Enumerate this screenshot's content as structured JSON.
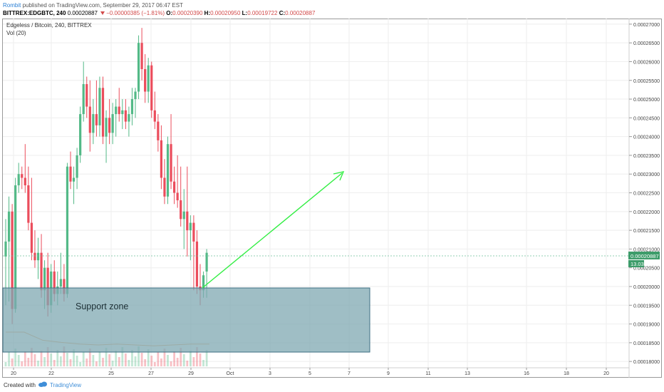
{
  "header": {
    "author": "Rombit",
    "published": "published on TradingView.com, September 29, 2017 06:47 EST",
    "symbol": "BITTREX:EDGBTC, 240",
    "last": "0.00020887",
    "change": "−0.00000385 (−1.81%)",
    "o_label": "O:",
    "o": "0.00020390",
    "h_label": "H:",
    "h": "0.00020950",
    "l_label": "L:",
    "l": "0.00019722",
    "c_label": "C:",
    "c": "0.00020887"
  },
  "legend": {
    "title": "Edgeless / Bitcoin, 240, BITTREX",
    "volume": "Vol (20)"
  },
  "annotation": {
    "support_text": "Support zone"
  },
  "price_tag": {
    "price": "0.00020887",
    "volume": "13.03"
  },
  "footer": {
    "created": "Created with",
    "brand": "TradingView"
  },
  "colors": {
    "up": "#53b987",
    "down": "#eb4d5c",
    "grid": "#eeeeee",
    "zone_fill": "#7fa8b2",
    "arrow": "#33ee44",
    "tag": "#3d9c6a"
  },
  "chart_data": {
    "type": "candlestick",
    "title": "Edgeless / Bitcoin, 240, BITTREX",
    "y_ticks": [
      "0.00018000",
      "0.00018500",
      "0.00019000",
      "0.00019500",
      "0.00020000",
      "0.00020500",
      "0.00021000",
      "0.00021500",
      "0.00022000",
      "0.00022500",
      "0.00023000",
      "0.00023500",
      "0.00024000",
      "0.00024500",
      "0.00025000",
      "0.00025500",
      "0.00026000",
      "0.00026500",
      "0.00027000"
    ],
    "y_range": [
      0.0001787,
      0.0002715
    ],
    "x_ticks": [
      "20",
      "22",
      "25",
      "27",
      "29",
      "Oct",
      "3",
      "5",
      "7",
      "9",
      "11",
      "13",
      "16",
      "18",
      "20"
    ],
    "candles": [
      {
        "o": 0.000208,
        "h": 0.000218,
        "l": 0.000195,
        "c": 0.000212
      },
      {
        "o": 0.000212,
        "h": 0.000224,
        "l": 0.000196,
        "c": 0.00022
      },
      {
        "o": 0.00022,
        "h": 0.000222,
        "l": 0.00019,
        "c": 0.000194
      },
      {
        "o": 0.000194,
        "h": 0.000229,
        "l": 0.000193,
        "c": 0.000227
      },
      {
        "o": 0.000227,
        "h": 0.000233,
        "l": 0.000225,
        "c": 0.00023
      },
      {
        "o": 0.00023,
        "h": 0.000232,
        "l": 0.000226,
        "c": 0.000229
      },
      {
        "o": 0.000229,
        "h": 0.000238,
        "l": 0.000225,
        "c": 0.000227
      },
      {
        "o": 0.000227,
        "h": 0.000232,
        "l": 0.000215,
        "c": 0.000217
      },
      {
        "o": 0.000217,
        "h": 0.000229,
        "l": 0.000207,
        "c": 0.000209
      },
      {
        "o": 0.000209,
        "h": 0.000215,
        "l": 0.000205,
        "c": 0.000207
      },
      {
        "o": 0.000207,
        "h": 0.000213,
        "l": 0.000202,
        "c": 0.000209
      },
      {
        "o": 0.000209,
        "h": 0.000214,
        "l": 0.000197,
        "c": 0.000199
      },
      {
        "o": 0.000199,
        "h": 0.000207,
        "l": 0.000194,
        "c": 0.000205
      },
      {
        "o": 0.000205,
        "h": 0.000209,
        "l": 0.000192,
        "c": 0.000195
      },
      {
        "o": 0.000195,
        "h": 0.000206,
        "l": 0.000193,
        "c": 0.000204
      },
      {
        "o": 0.000204,
        "h": 0.000207,
        "l": 0.000196,
        "c": 0.000198
      },
      {
        "o": 0.000198,
        "h": 0.000204,
        "l": 0.000195,
        "c": 0.0002
      },
      {
        "o": 0.0002,
        "h": 0.000209,
        "l": 0.000198,
        "c": 0.000202
      },
      {
        "o": 0.000202,
        "h": 0.000206,
        "l": 0.000196,
        "c": 0.000198
      },
      {
        "o": 0.000198,
        "h": 0.000233,
        "l": 0.000197,
        "c": 0.000232
      },
      {
        "o": 0.000232,
        "h": 0.000236,
        "l": 0.000226,
        "c": 0.000228
      },
      {
        "o": 0.000228,
        "h": 0.000232,
        "l": 0.000222,
        "c": 0.000229
      },
      {
        "o": 0.000229,
        "h": 0.000237,
        "l": 0.000226,
        "c": 0.000235
      },
      {
        "o": 0.000235,
        "h": 0.000248,
        "l": 0.000233,
        "c": 0.000246
      },
      {
        "o": 0.000246,
        "h": 0.00026,
        "l": 0.000244,
        "c": 0.000254
      },
      {
        "o": 0.000254,
        "h": 0.000256,
        "l": 0.000245,
        "c": 0.000248
      },
      {
        "o": 0.000248,
        "h": 0.000255,
        "l": 0.000236,
        "c": 0.000241
      },
      {
        "o": 0.000241,
        "h": 0.00025,
        "l": 0.000238,
        "c": 0.000246
      },
      {
        "o": 0.000246,
        "h": 0.000255,
        "l": 0.00024,
        "c": 0.000243
      },
      {
        "o": 0.000243,
        "h": 0.000256,
        "l": 0.00024,
        "c": 0.000253
      },
      {
        "o": 0.000253,
        "h": 0.000256,
        "l": 0.000238,
        "c": 0.00024
      },
      {
        "o": 0.00024,
        "h": 0.000247,
        "l": 0.000233,
        "c": 0.000245
      },
      {
        "o": 0.000245,
        "h": 0.00025,
        "l": 0.000238,
        "c": 0.000241
      },
      {
        "o": 0.000241,
        "h": 0.000249,
        "l": 0.000238,
        "c": 0.000246
      },
      {
        "o": 0.000246,
        "h": 0.00025,
        "l": 0.00024,
        "c": 0.000248
      },
      {
        "o": 0.000248,
        "h": 0.000253,
        "l": 0.000244,
        "c": 0.000246
      },
      {
        "o": 0.000246,
        "h": 0.00025,
        "l": 0.000242,
        "c": 0.000247
      },
      {
        "o": 0.000247,
        "h": 0.00025,
        "l": 0.000242,
        "c": 0.000244
      },
      {
        "o": 0.000244,
        "h": 0.000248,
        "l": 0.00024,
        "c": 0.000246
      },
      {
        "o": 0.000246,
        "h": 0.000253,
        "l": 0.000243,
        "c": 0.00025
      },
      {
        "o": 0.00025,
        "h": 0.000253,
        "l": 0.000245,
        "c": 0.000252
      },
      {
        "o": 0.000252,
        "h": 0.000267,
        "l": 0.00025,
        "c": 0.000265
      },
      {
        "o": 0.000265,
        "h": 0.000269,
        "l": 0.000255,
        "c": 0.000258
      },
      {
        "o": 0.000258,
        "h": 0.000262,
        "l": 0.000249,
        "c": 0.000252
      },
      {
        "o": 0.000252,
        "h": 0.000261,
        "l": 0.000249,
        "c": 0.000259
      },
      {
        "o": 0.000259,
        "h": 0.00026,
        "l": 0.000245,
        "c": 0.000247
      },
      {
        "o": 0.000247,
        "h": 0.000252,
        "l": 0.000242,
        "c": 0.000244
      },
      {
        "o": 0.000244,
        "h": 0.000246,
        "l": 0.000236,
        "c": 0.000239
      },
      {
        "o": 0.000239,
        "h": 0.000243,
        "l": 0.000226,
        "c": 0.000229
      },
      {
        "o": 0.000229,
        "h": 0.000234,
        "l": 0.000222,
        "c": 0.000224
      },
      {
        "o": 0.000224,
        "h": 0.00024,
        "l": 0.000222,
        "c": 0.000238
      },
      {
        "o": 0.000238,
        "h": 0.000246,
        "l": 0.000226,
        "c": 0.000228
      },
      {
        "o": 0.000228,
        "h": 0.000232,
        "l": 0.000222,
        "c": 0.000225
      },
      {
        "o": 0.000225,
        "h": 0.000235,
        "l": 0.000221,
        "c": 0.000223
      },
      {
        "o": 0.000223,
        "h": 0.000232,
        "l": 0.000216,
        "c": 0.000218
      },
      {
        "o": 0.000218,
        "h": 0.000226,
        "l": 0.00021,
        "c": 0.00022
      },
      {
        "o": 0.00022,
        "h": 0.000232,
        "l": 0.000208,
        "c": 0.000215
      },
      {
        "o": 0.000215,
        "h": 0.000219,
        "l": 0.000207,
        "c": 0.000217
      },
      {
        "o": 0.000217,
        "h": 0.000219,
        "l": 0.000199,
        "c": 0.000212
      },
      {
        "o": 0.000212,
        "h": 0.000215,
        "l": 0.000198,
        "c": 0.0002
      },
      {
        "o": 0.0002,
        "h": 0.000206,
        "l": 0.000195,
        "c": 0.000199
      },
      {
        "o": 0.000199,
        "h": 0.000204,
        "l": 0.000197,
        "c": 0.000203
      },
      {
        "o": 0.000204,
        "h": 0.00021,
        "l": 0.000197,
        "c": 0.000209
      }
    ],
    "volume_ma": [
      0.00019,
      0.00019,
      0.00018905,
      0.0001888,
      0.0001886,
      0.0001885,
      0.0001886,
      0.0001885,
      0.0001884,
      0.0001885,
      0.0001886,
      0.0001886
    ]
  }
}
